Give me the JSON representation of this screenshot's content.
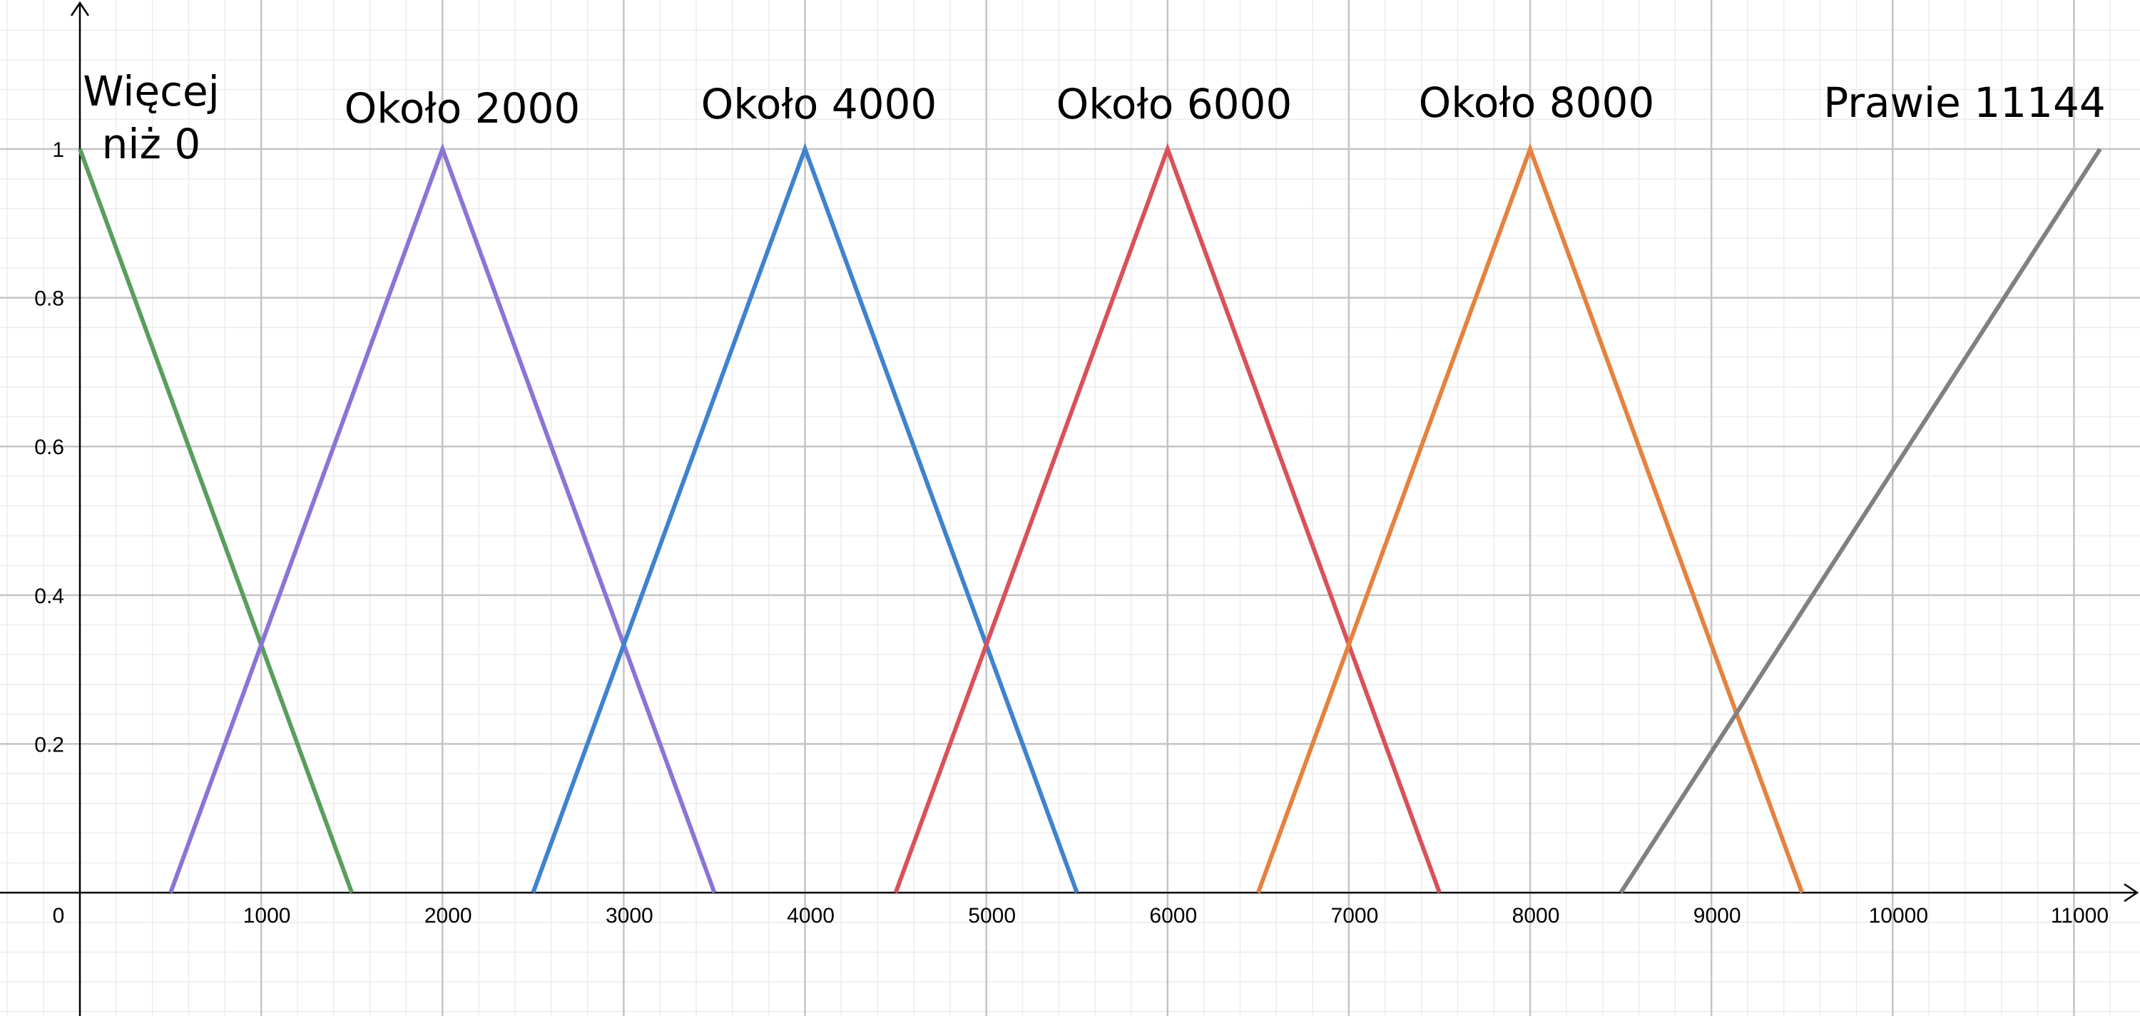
{
  "chart_data": {
    "type": "line",
    "title": "",
    "xlabel": "",
    "ylabel": "",
    "xlim": [
      -450,
      11800
    ],
    "ylim": [
      -0.165,
      1.2
    ],
    "grid": true,
    "x_ticks": [
      0,
      1000,
      2000,
      3000,
      4000,
      5000,
      6000,
      7000,
      8000,
      9000,
      10000,
      11000
    ],
    "x_tick_labels": [
      "0",
      "1000",
      "2000",
      "3000",
      "4000",
      "5000",
      "6000",
      "7000",
      "8000",
      "9000",
      "10000",
      "11000"
    ],
    "y_ticks": [
      0.2,
      0.4,
      0.6,
      0.8,
      1
    ],
    "y_tick_labels": [
      "0.2",
      "0.4",
      "0.6",
      "0.8",
      "1"
    ],
    "series": [
      {
        "label_lines": [
          "Więcej",
          "niż 0"
        ],
        "color": "#5a9e5e",
        "points": [
          [
            0,
            1
          ],
          [
            1500,
            0
          ]
        ]
      },
      {
        "label_lines": [
          "Około 2000"
        ],
        "color": "#8b74d6",
        "points": [
          [
            500,
            0
          ],
          [
            2000,
            1
          ],
          [
            3500,
            0
          ]
        ]
      },
      {
        "label_lines": [
          "Około 4000"
        ],
        "color": "#3f82cf",
        "points": [
          [
            2500,
            0
          ],
          [
            4000,
            1
          ],
          [
            5500,
            0
          ]
        ]
      },
      {
        "label_lines": [
          "Około 6000"
        ],
        "color": "#d9515a",
        "points": [
          [
            4500,
            0
          ],
          [
            6000,
            1
          ],
          [
            7500,
            0
          ]
        ]
      },
      {
        "label_lines": [
          "Około 8000"
        ],
        "color": "#e5823f",
        "points": [
          [
            6500,
            0
          ],
          [
            8000,
            1
          ],
          [
            9500,
            0
          ]
        ]
      },
      {
        "label_lines": [
          "Prawie 11144"
        ],
        "color": "#808080",
        "points": [
          [
            8500,
            0
          ],
          [
            11144,
            1
          ]
        ]
      }
    ]
  }
}
